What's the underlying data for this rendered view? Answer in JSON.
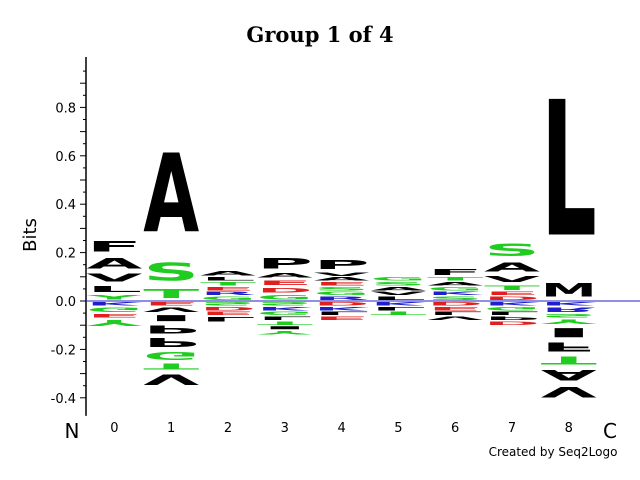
{
  "chart_data": {
    "type": "sequence-logo",
    "title": "Group 1 of 4",
    "ylabel": "Bits",
    "ylim": [
      -0.45,
      1.0
    ],
    "y_ticks": [
      0.8,
      0.6,
      0.4,
      0.2,
      0.0,
      -0.2,
      -0.4
    ],
    "positions": [
      "0",
      "1",
      "2",
      "3",
      "4",
      "5",
      "6",
      "7",
      "8"
    ],
    "n_terminal_label": "N",
    "c_terminal_label": "C",
    "credit": "Created by Seq2Logo",
    "colors": {
      "F": "#000000",
      "A": "#000000",
      "L": "#000000",
      "M": "#000000",
      "P": "#000000",
      "V": "#000000",
      "I": "#000000",
      "W": "#000000",
      "S": "#1fcc1f",
      "T": "#1fcc1f",
      "G": "#1fcc1f",
      "Y": "#1fcc1f",
      "C": "#1fcc1f",
      "N": "#1fcc1f",
      "Q": "#1fcc1f",
      "K": "#1f1fcc",
      "R": "#1f1fcc",
      "H": "#1f1fcc",
      "D": "#e01f1f",
      "E": "#e01f1f"
    },
    "stacks": [
      {
        "position": "0",
        "positive": [
          [
            "Y",
            0.03
          ],
          [
            "L",
            0.04
          ],
          [
            "V",
            0.05
          ],
          [
            "A",
            0.07
          ],
          [
            "F",
            0.07
          ]
        ],
        "negative": [
          [
            "K",
            0.02
          ],
          [
            "G",
            0.03
          ],
          [
            "E",
            0.02
          ],
          [
            "Y",
            0.04
          ]
        ]
      },
      {
        "position": "1",
        "positive": [
          [
            "T",
            0.06
          ],
          [
            "S",
            0.12
          ],
          [
            "A",
            0.52
          ]
        ],
        "negative": [
          [
            "E",
            0.02
          ],
          [
            "V",
            0.03
          ],
          [
            "I",
            0.04
          ],
          [
            "P",
            0.05
          ],
          [
            "P",
            0.06
          ],
          [
            "G",
            0.05
          ],
          [
            "T",
            0.04
          ],
          [
            "V",
            0.07
          ]
        ]
      },
      {
        "position": "2",
        "positive": [
          [
            "G",
            0.02
          ],
          [
            "R",
            0.02
          ],
          [
            "E",
            0.02
          ],
          [
            "T",
            0.02
          ],
          [
            "L",
            0.02
          ],
          [
            "A",
            0.03
          ]
        ],
        "negative": [
          [
            "S",
            0.02
          ],
          [
            "D",
            0.02
          ],
          [
            "E",
            0.02
          ],
          [
            "L",
            0.03
          ]
        ]
      },
      {
        "position": "3",
        "positive": [
          [
            "G",
            0.03
          ],
          [
            "D",
            0.03
          ],
          [
            "E",
            0.03
          ],
          [
            "A",
            0.03
          ],
          [
            "P",
            0.07
          ]
        ],
        "negative": [
          [
            "S",
            0.02
          ],
          [
            "K",
            0.02
          ],
          [
            "G",
            0.02
          ],
          [
            "L",
            0.02
          ],
          [
            "T",
            0.02
          ],
          [
            "I",
            0.02
          ],
          [
            "Y",
            0.02
          ]
        ]
      },
      {
        "position": "4",
        "positive": [
          [
            "R",
            0.02
          ],
          [
            "G",
            0.02
          ],
          [
            "S",
            0.02
          ],
          [
            "E",
            0.02
          ],
          [
            "A",
            0.02
          ],
          [
            "V",
            0.02
          ],
          [
            "P",
            0.06
          ]
        ],
        "negative": [
          [
            "D",
            0.02
          ],
          [
            "K",
            0.02
          ],
          [
            "L",
            0.02
          ],
          [
            "E",
            0.02
          ]
        ]
      },
      {
        "position": "5",
        "positive": [
          [
            "L",
            0.02
          ],
          [
            "V",
            0.02
          ],
          [
            "A",
            0.02
          ],
          [
            "S",
            0.02
          ],
          [
            "G",
            0.02
          ]
        ],
        "negative": [
          [
            "K",
            0.02
          ],
          [
            "L",
            0.02
          ],
          [
            "T",
            0.02
          ]
        ]
      },
      {
        "position": "6",
        "positive": [
          [
            "S",
            0.02
          ],
          [
            "K",
            0.02
          ],
          [
            "G",
            0.02
          ],
          [
            "A",
            0.02
          ],
          [
            "T",
            0.02
          ],
          [
            "F",
            0.04
          ]
        ],
        "negative": [
          [
            "D",
            0.02
          ],
          [
            "E",
            0.02
          ],
          [
            "L",
            0.02
          ],
          [
            "V",
            0.02
          ]
        ]
      },
      {
        "position": "7",
        "positive": [
          [
            "D",
            0.02
          ],
          [
            "E",
            0.02
          ],
          [
            "T",
            0.03
          ],
          [
            "V",
            0.04
          ],
          [
            "A",
            0.06
          ],
          [
            "S",
            0.08
          ]
        ],
        "negative": [
          [
            "K",
            0.02
          ],
          [
            "G",
            0.02
          ],
          [
            "L",
            0.02
          ],
          [
            "P",
            0.02
          ],
          [
            "D",
            0.02
          ]
        ]
      },
      {
        "position": "8",
        "positive": [
          [
            "M",
            0.09
          ],
          [
            "L",
            0.9
          ]
        ],
        "negative": [
          [
            "K",
            0.02
          ],
          [
            "R",
            0.03
          ],
          [
            "S",
            0.02
          ],
          [
            "Y",
            0.03
          ],
          [
            "I",
            0.06
          ],
          [
            "F",
            0.06
          ],
          [
            "T",
            0.05
          ],
          [
            "A",
            0.07
          ],
          [
            "V",
            0.07
          ]
        ]
      }
    ]
  }
}
